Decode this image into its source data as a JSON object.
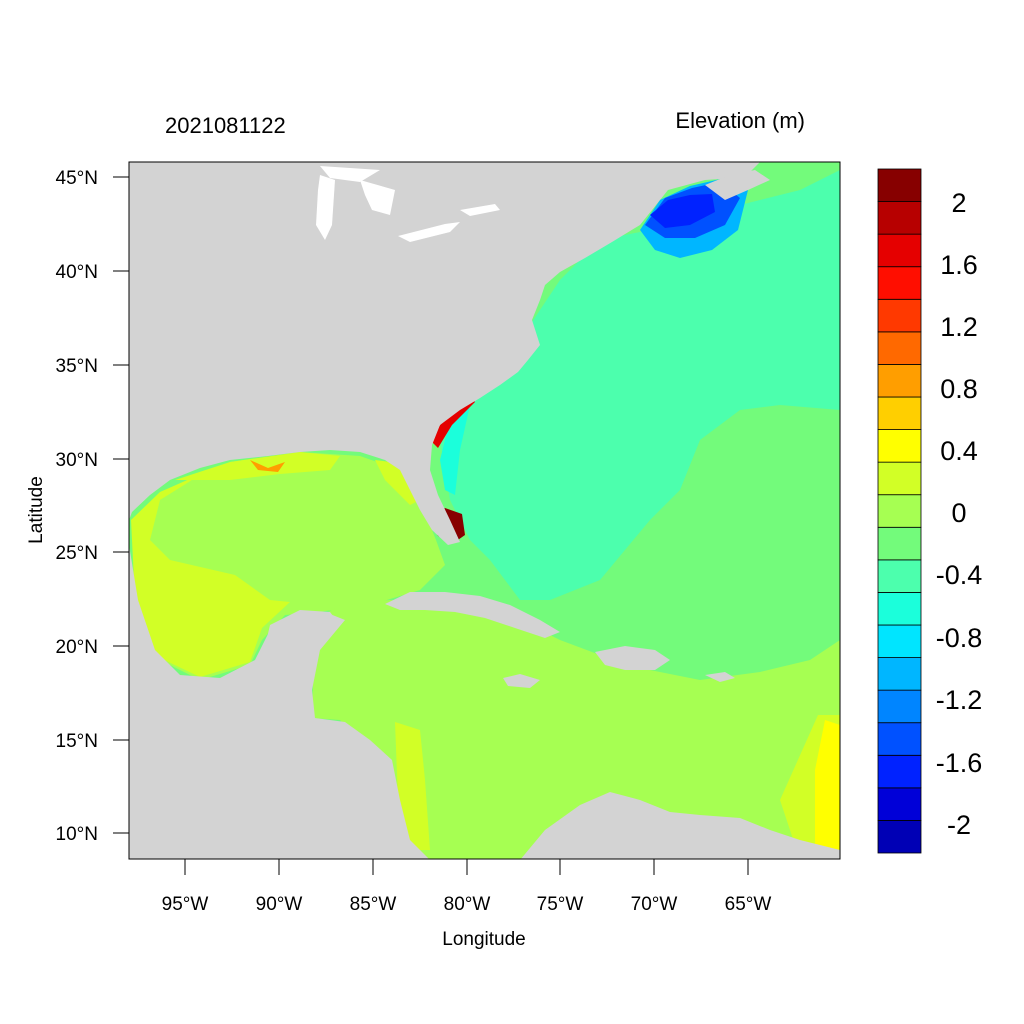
{
  "header": {
    "left_title": "2021081122",
    "right_title": "Elevation (m)"
  },
  "axes": {
    "xlabel": "Longitude",
    "ylabel": "Latitude",
    "xticks": [
      "95°W",
      "90°W",
      "85°W",
      "80°W",
      "75°W",
      "70°W",
      "65°W"
    ],
    "yticks": [
      "45°N",
      "40°N",
      "35°N",
      "30°N",
      "25°N",
      "20°N",
      "15°N",
      "10°N"
    ]
  },
  "map": {
    "lon_range": [
      -98.2,
      -60.3
    ],
    "lat_range": [
      8.5,
      45.8
    ],
    "land_color": "#d3d3d3",
    "water_base_color": "#73fb7b"
  },
  "colorbar": {
    "colors": [
      "#0000b5",
      "#0000d8",
      "#0022ff",
      "#0051ff",
      "#0085ff",
      "#00b6ff",
      "#00e5ff",
      "#1bffdb",
      "#4cffad",
      "#73fb7b",
      "#a6ff52",
      "#d2ff26",
      "#ffff00",
      "#ffcf00",
      "#ff9e00",
      "#ff6900",
      "#ff3900",
      "#ff0e00",
      "#e50000",
      "#b70000",
      "#870000"
    ],
    "labels": [
      "-2",
      "-1.6",
      "-1.2",
      "-0.8",
      "-0.4",
      "0",
      "0.4",
      "0.8",
      "1.2",
      "1.6",
      "2"
    ]
  }
}
